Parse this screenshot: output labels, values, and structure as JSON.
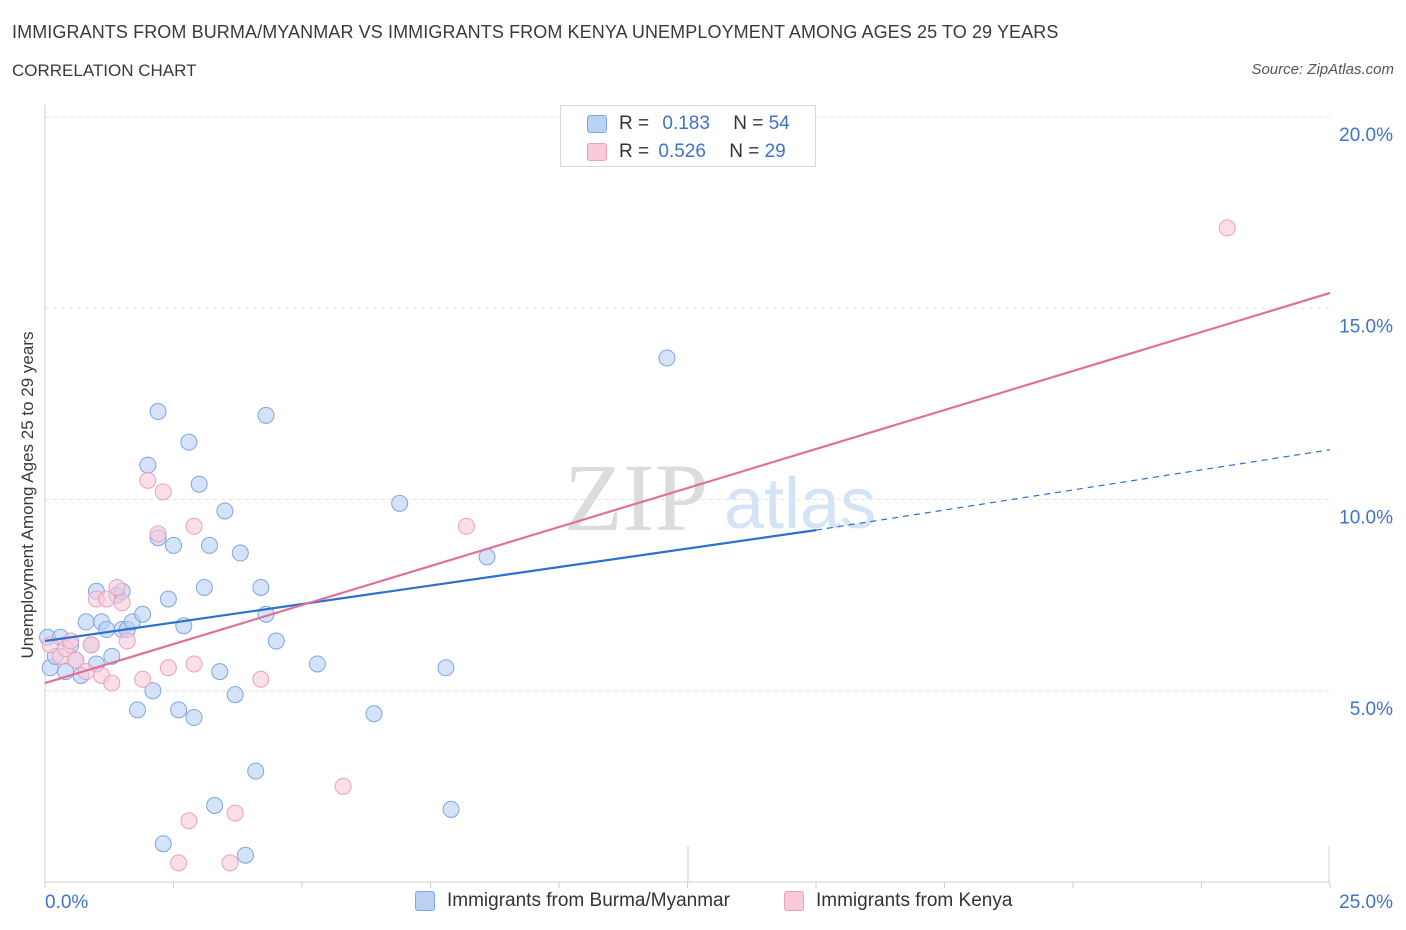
{
  "header": {
    "title": "IMMIGRANTS FROM BURMA/MYANMAR VS IMMIGRANTS FROM KENYA UNEMPLOYMENT AMONG AGES 25 TO 29 YEARS",
    "subtitle": "CORRELATION CHART",
    "source": "Source: ZipAtlas.com"
  },
  "legend": {
    "r_label": "R =",
    "n_label": "N =",
    "rows": [
      {
        "name": "Immigrants from Burma/Myanmar",
        "r": "0.183",
        "n": "54"
      },
      {
        "name": "Immigrants from Kenya",
        "r": "0.526",
        "n": "29"
      }
    ]
  },
  "watermark": {
    "zip": "ZIP",
    "atlas": "atlas"
  },
  "colors": {
    "blue_fill": "#b9d1f3",
    "blue_stroke": "#7ea6e0",
    "blue_line": "#2f6fce",
    "pink_fill": "#f8c9d8",
    "pink_stroke": "#eda0b9",
    "pink_line": "#e07097",
    "tick_text": "#3f72c9",
    "grid": "#e3e3e3"
  },
  "chart_data": {
    "type": "scatter",
    "title": "IMMIGRANTS FROM BURMA/MYANMAR VS IMMIGRANTS FROM KENYA UNEMPLOYMENT AMONG AGES 25 TO 29 YEARS",
    "xlabel": "",
    "ylabel": "Unemployment Among Ages 25 to 29 years",
    "xlim": [
      0,
      25
    ],
    "ylim": [
      0,
      20
    ],
    "x_tick_labels": [
      "0.0%",
      "25.0%"
    ],
    "y_ticks": [
      5,
      10,
      15,
      20
    ],
    "y_tick_labels": [
      "5.0%",
      "10.0%",
      "15.0%",
      "20.0%"
    ],
    "grid": true,
    "legend_position": "top-center",
    "series": [
      {
        "name": "Immigrants from Burma/Myanmar",
        "color": "#b9d1f3",
        "points": [
          [
            0.05,
            6.4
          ],
          [
            0.1,
            5.6
          ],
          [
            0.2,
            5.9
          ],
          [
            0.3,
            6.4
          ],
          [
            0.4,
            5.5
          ],
          [
            0.5,
            6.2
          ],
          [
            0.6,
            5.8
          ],
          [
            0.7,
            5.4
          ],
          [
            0.8,
            6.8
          ],
          [
            0.9,
            6.2
          ],
          [
            1.0,
            5.7
          ],
          [
            1.0,
            7.6
          ],
          [
            1.1,
            6.8
          ],
          [
            1.2,
            6.6
          ],
          [
            1.3,
            5.9
          ],
          [
            1.4,
            7.5
          ],
          [
            1.5,
            7.6
          ],
          [
            1.5,
            6.6
          ],
          [
            1.6,
            6.6
          ],
          [
            1.7,
            6.8
          ],
          [
            1.8,
            4.5
          ],
          [
            1.9,
            7.0
          ],
          [
            2.0,
            10.9
          ],
          [
            2.1,
            5.0
          ],
          [
            2.2,
            9.0
          ],
          [
            2.2,
            12.3
          ],
          [
            2.3,
            1.0
          ],
          [
            2.4,
            7.4
          ],
          [
            2.5,
            8.8
          ],
          [
            2.6,
            4.5
          ],
          [
            2.7,
            6.7
          ],
          [
            2.8,
            11.5
          ],
          [
            2.9,
            4.3
          ],
          [
            3.0,
            10.4
          ],
          [
            3.1,
            7.7
          ],
          [
            3.2,
            8.8
          ],
          [
            3.3,
            2.0
          ],
          [
            3.4,
            5.5
          ],
          [
            3.5,
            9.7
          ],
          [
            3.7,
            4.9
          ],
          [
            3.8,
            8.6
          ],
          [
            3.9,
            0.7
          ],
          [
            4.1,
            2.9
          ],
          [
            4.2,
            7.7
          ],
          [
            4.3,
            7.0
          ],
          [
            4.3,
            12.2
          ],
          [
            4.5,
            6.3
          ],
          [
            5.3,
            5.7
          ],
          [
            6.4,
            4.4
          ],
          [
            6.9,
            9.9
          ],
          [
            7.8,
            5.6
          ],
          [
            7.9,
            1.9
          ],
          [
            8.6,
            8.5
          ],
          [
            12.1,
            13.7
          ]
        ]
      },
      {
        "name": "Immigrants from Kenya",
        "color": "#f8c9d8",
        "points": [
          [
            0.1,
            6.2
          ],
          [
            0.3,
            5.9
          ],
          [
            0.4,
            6.1
          ],
          [
            0.5,
            6.3
          ],
          [
            0.6,
            5.8
          ],
          [
            0.8,
            5.5
          ],
          [
            0.9,
            6.2
          ],
          [
            1.0,
            7.4
          ],
          [
            1.1,
            5.4
          ],
          [
            1.2,
            7.4
          ],
          [
            1.3,
            5.2
          ],
          [
            1.4,
            7.7
          ],
          [
            1.5,
            7.3
          ],
          [
            1.6,
            6.3
          ],
          [
            1.9,
            5.3
          ],
          [
            2.0,
            10.5
          ],
          [
            2.2,
            9.1
          ],
          [
            2.3,
            10.2
          ],
          [
            2.4,
            5.6
          ],
          [
            2.6,
            0.5
          ],
          [
            2.8,
            1.6
          ],
          [
            2.9,
            9.3
          ],
          [
            2.9,
            5.7
          ],
          [
            3.6,
            0.5
          ],
          [
            3.7,
            1.8
          ],
          [
            4.2,
            5.3
          ],
          [
            5.8,
            2.5
          ],
          [
            8.2,
            9.3
          ],
          [
            23.0,
            17.1
          ]
        ]
      }
    ],
    "trend_lines": [
      {
        "series": "Immigrants from Burma/Myanmar",
        "x": [
          0,
          15
        ],
        "y": [
          6.3,
          9.2
        ],
        "extended_dashed_to": [
          25,
          11.3
        ]
      },
      {
        "series": "Immigrants from Kenya",
        "x": [
          0,
          25
        ],
        "y": [
          5.2,
          15.4
        ]
      }
    ]
  }
}
